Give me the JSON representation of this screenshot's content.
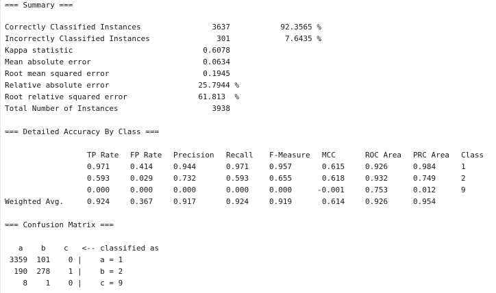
{
  "summary": {
    "header": "=== Summary ===",
    "rows": [
      {
        "label": "Correctly Classified Instances",
        "value": "3637",
        "pct": "92.3565 %"
      },
      {
        "label": "Incorrectly Classified Instances",
        "value": "301",
        "pct": "7.6435 %"
      },
      {
        "label": "Kappa statistic",
        "value": "0.6078",
        "pct": ""
      },
      {
        "label": "Mean absolute error",
        "value": "0.0634",
        "pct": ""
      },
      {
        "label": "Root mean squared error",
        "value": "0.1945",
        "pct": ""
      },
      {
        "label": "Relative absolute error",
        "value": "25.7944 %",
        "pct": ""
      },
      {
        "label": "Root relative squared error",
        "value": "61.813  %",
        "pct": ""
      },
      {
        "label": "Total Number of Instances",
        "value": "3938",
        "pct": ""
      }
    ]
  },
  "accuracy": {
    "header": "=== Detailed Accuracy By Class ===",
    "columns": [
      "TP Rate",
      "FP Rate",
      "Precision",
      "Recall",
      "F-Measure",
      "MCC",
      "ROC Area",
      "PRC Area",
      "Class"
    ],
    "rows": [
      {
        "label": "",
        "cells": [
          "0.971",
          "0.414",
          "0.944",
          "0.971",
          "0.957",
          "0.615",
          "0.926",
          "0.984",
          "1"
        ]
      },
      {
        "label": "",
        "cells": [
          "0.593",
          "0.029",
          "0.732",
          "0.593",
          "0.655",
          "0.618",
          "0.932",
          "0.749",
          "2"
        ]
      },
      {
        "label": "",
        "cells": [
          "0.000",
          "0.000",
          "0.000",
          "0.000",
          "0.000",
          "-0.001",
          "0.753",
          "0.012",
          "9"
        ]
      },
      {
        "label": "Weighted Avg.",
        "cells": [
          "0.924",
          "0.367",
          "0.917",
          "0.924",
          "0.919",
          "0.614",
          "0.926",
          "0.954",
          ""
        ]
      }
    ]
  },
  "confusion": {
    "header": "=== Confusion Matrix ===",
    "col_header": "   a    b    c   <-- classified as",
    "rows": [
      " 3359  101    0 |    a = 1",
      "  190  278    1 |    b = 2",
      "    8    1    0 |    c = 9"
    ]
  }
}
